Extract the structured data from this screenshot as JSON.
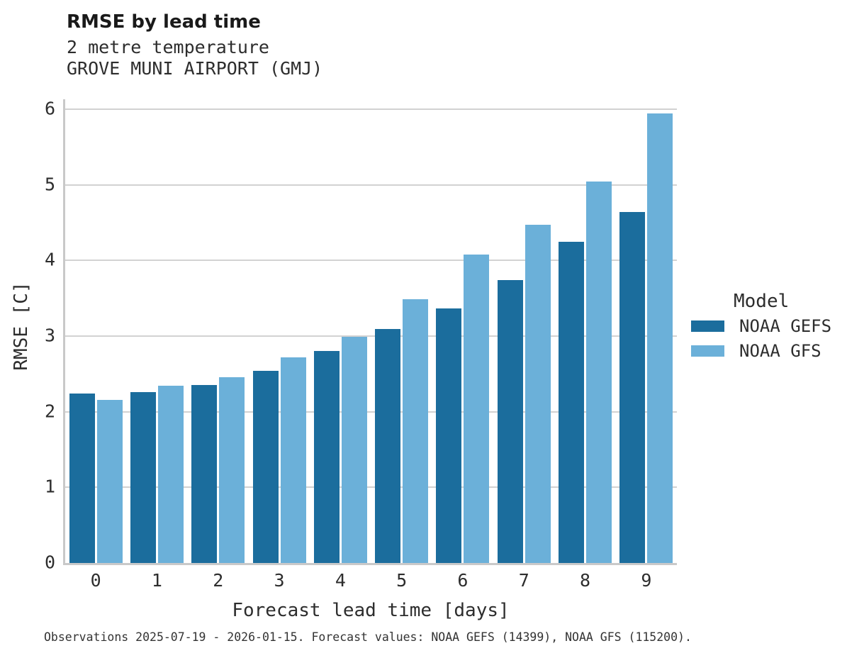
{
  "header": {
    "title": "RMSE by lead time",
    "subtitle_line1": "2 metre temperature",
    "subtitle_line2": "GROVE MUNI AIRPORT (GMJ)"
  },
  "chart_data": {
    "type": "bar",
    "title": "RMSE by lead time",
    "subtitle": [
      "2 metre temperature",
      "GROVE MUNI AIRPORT (GMJ)"
    ],
    "categories": [
      "0",
      "1",
      "2",
      "3",
      "4",
      "5",
      "6",
      "7",
      "8",
      "9"
    ],
    "series": [
      {
        "name": "NOAA GEFS",
        "color": "#1B6D9D",
        "values": [
          2.24,
          2.26,
          2.35,
          2.54,
          2.8,
          3.09,
          3.37,
          3.74,
          4.25,
          4.64
        ]
      },
      {
        "name": "NOAA GFS",
        "color": "#6BB0D9",
        "values": [
          2.16,
          2.34,
          2.46,
          2.72,
          2.99,
          3.49,
          4.08,
          4.47,
          5.04,
          5.94
        ]
      }
    ],
    "xlabel": "Forecast lead time [days]",
    "ylabel": "RMSE [C]",
    "ylim": [
      0,
      6
    ],
    "yticks": [
      0,
      1,
      2,
      3,
      4,
      5,
      6
    ],
    "grid": "horizontal-only",
    "legend_title": "Model",
    "legend_position": "right"
  },
  "legend": {
    "title": "Model"
  },
  "caption": {
    "text": "Observations 2025-07-19 - 2026-01-15. Forecast values: NOAA GEFS (14399), NOAA GFS (115200)."
  },
  "colors": {
    "gefs_dark_blue": "#1B6D9D",
    "gfs_light_blue": "#6BB0D9",
    "gridline_gray": "#d2d2d2",
    "spine_gray": "#c9c9c9",
    "text_dark": "#2d2d2d"
  }
}
